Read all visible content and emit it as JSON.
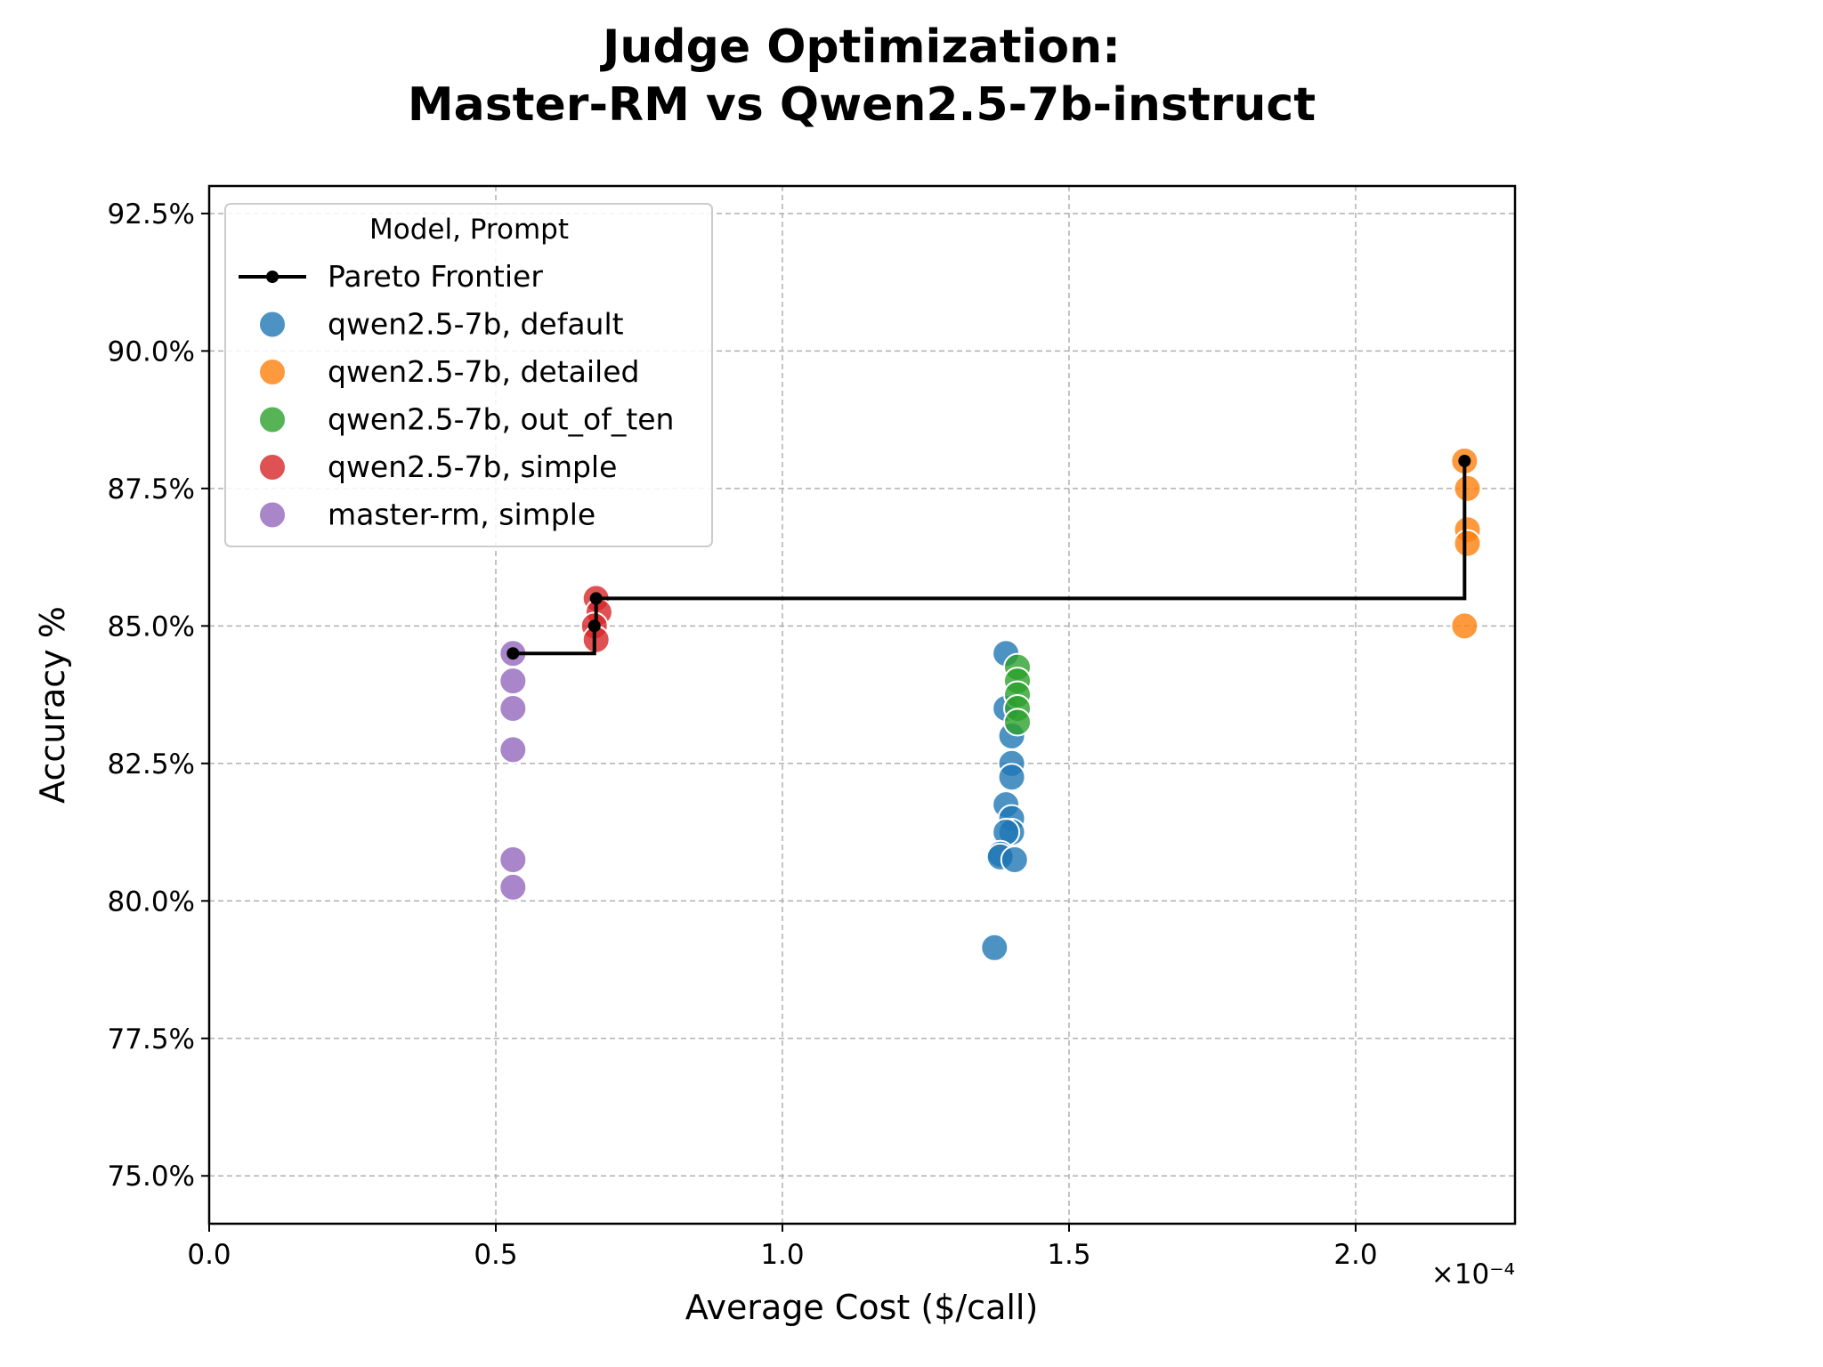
{
  "chart_data": {
    "type": "scatter",
    "title": [
      "Judge Optimization:",
      "Master-RM vs Qwen2.5-7b-instruct"
    ],
    "xlabel": "Average Cost ($/call)",
    "ylabel": "Accuracy %",
    "x_scale_label": "×10⁻⁴",
    "xlim": [
      0.0,
      2.278
    ],
    "ylim": [
      74.13,
      93.0
    ],
    "xticks": [
      0.0,
      0.5,
      1.0,
      1.5,
      2.0
    ],
    "xtick_labels": [
      "0.0",
      "0.5",
      "1.0",
      "1.5",
      "2.0"
    ],
    "yticks": [
      75.0,
      77.5,
      80.0,
      82.5,
      85.0,
      87.5,
      90.0,
      92.5
    ],
    "ytick_labels": [
      "75.0%",
      "77.5%",
      "80.0%",
      "82.5%",
      "85.0%",
      "87.5%",
      "90.0%",
      "92.5%"
    ],
    "grid": true,
    "legend": {
      "title": "Model, Prompt",
      "placement": "top-left"
    },
    "pareto": {
      "name": "Pareto Frontier",
      "color": "#000000",
      "points": [
        [
          0.53,
          84.5
        ],
        [
          0.672,
          85.0
        ],
        [
          0.675,
          85.5
        ],
        [
          2.19,
          88.0
        ]
      ]
    },
    "series": [
      {
        "name": "qwen2.5-7b, default",
        "color": "#1f77b4",
        "points": [
          [
            1.39,
            84.5
          ],
          [
            1.39,
            83.5
          ],
          [
            1.4,
            83.0
          ],
          [
            1.4,
            82.5
          ],
          [
            1.4,
            82.25
          ],
          [
            1.39,
            81.75
          ],
          [
            1.4,
            81.5
          ],
          [
            1.4,
            81.25
          ],
          [
            1.39,
            81.25
          ],
          [
            1.38,
            80.85
          ],
          [
            1.38,
            80.8
          ],
          [
            1.405,
            80.75
          ],
          [
            1.37,
            79.15
          ]
        ]
      },
      {
        "name": "qwen2.5-7b, detailed",
        "color": "#ff7f0e",
        "points": [
          [
            2.19,
            88.0
          ],
          [
            2.195,
            87.5
          ],
          [
            2.195,
            86.75
          ],
          [
            2.195,
            86.5
          ],
          [
            2.19,
            85.0
          ]
        ]
      },
      {
        "name": "qwen2.5-7b, out_of_ten",
        "color": "#2ca02c",
        "points": [
          [
            1.41,
            84.25
          ],
          [
            1.41,
            84.0
          ],
          [
            1.41,
            83.75
          ],
          [
            1.41,
            83.5
          ],
          [
            1.41,
            83.25
          ]
        ]
      },
      {
        "name": "qwen2.5-7b, simple",
        "color": "#d62728",
        "points": [
          [
            0.675,
            85.5
          ],
          [
            0.68,
            85.25
          ],
          [
            0.672,
            85.0
          ],
          [
            0.675,
            84.75
          ]
        ]
      },
      {
        "name": "master-rm, simple",
        "color": "#9467bd",
        "points": [
          [
            0.53,
            84.5
          ],
          [
            0.53,
            84.0
          ],
          [
            0.53,
            83.5
          ],
          [
            0.53,
            82.75
          ],
          [
            0.53,
            80.75
          ],
          [
            0.53,
            80.25
          ]
        ]
      }
    ]
  }
}
